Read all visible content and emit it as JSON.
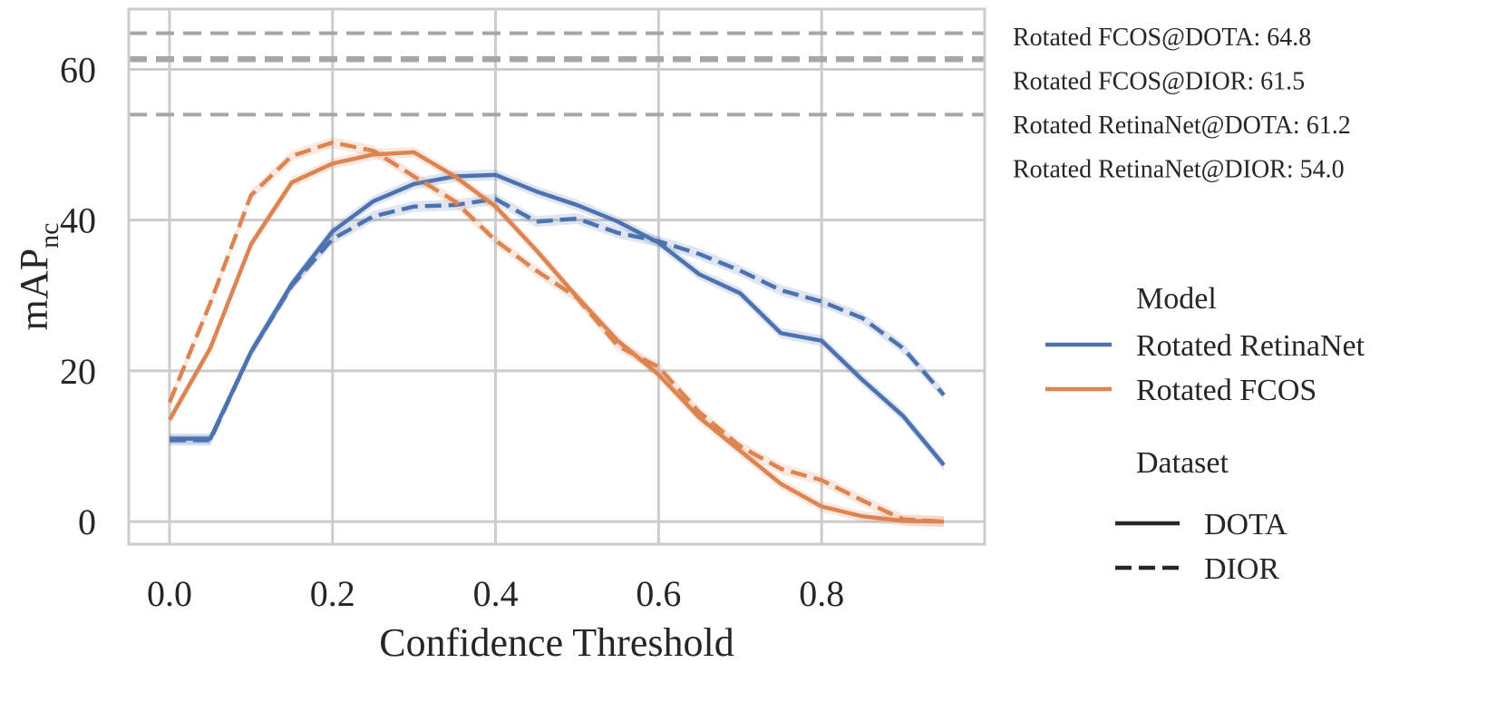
{
  "chart_data": {
    "type": "line",
    "xlabel": "Confidence Threshold",
    "ylabel_main": "mAP",
    "ylabel_sub": "nc",
    "xlim": [
      -0.05,
      1.0
    ],
    "ylim": [
      -3,
      68
    ],
    "xticks": [
      0.0,
      0.2,
      0.4,
      0.6,
      0.8
    ],
    "xtick_labels": [
      "0.0",
      "0.2",
      "0.4",
      "0.6",
      "0.8"
    ],
    "yticks": [
      0,
      20,
      40,
      60
    ],
    "ytick_labels": [
      "0",
      "20",
      "40",
      "60"
    ],
    "grid": true,
    "x": [
      0.0,
      0.05,
      0.1,
      0.15,
      0.2,
      0.25,
      0.3,
      0.35,
      0.4,
      0.45,
      0.5,
      0.55,
      0.6,
      0.65,
      0.7,
      0.75,
      0.8,
      0.85,
      0.9,
      0.95
    ],
    "series": [
      {
        "name": "Rotated RetinaNet · DOTA",
        "model": "Rotated RetinaNet",
        "dataset": "DOTA",
        "color": "#4c72b0",
        "dash": "solid",
        "values": [
          11.0,
          11.0,
          22.5,
          31.5,
          38.5,
          42.5,
          44.8,
          45.8,
          46.0,
          43.8,
          42.0,
          39.8,
          37.0,
          32.8,
          30.3,
          25.0,
          24.0,
          18.8,
          14.0,
          7.5
        ]
      },
      {
        "name": "Rotated RetinaNet · DIOR",
        "model": "Rotated RetinaNet",
        "dataset": "DIOR",
        "color": "#4c72b0",
        "dash": "dashed",
        "values": [
          10.8,
          10.8,
          22.5,
          31.3,
          37.5,
          40.5,
          41.8,
          42.0,
          42.8,
          39.8,
          40.2,
          38.3,
          37.2,
          35.5,
          33.3,
          30.7,
          29.2,
          27.0,
          23.0,
          16.8
        ]
      },
      {
        "name": "Rotated FCOS · DOTA",
        "model": "Rotated FCOS",
        "dataset": "DOTA",
        "color": "#dd8452",
        "dash": "solid",
        "values": [
          13.5,
          23.0,
          36.8,
          45.0,
          47.5,
          48.7,
          49.0,
          45.8,
          41.8,
          36.0,
          29.8,
          24.0,
          19.5,
          13.8,
          9.4,
          5.0,
          2.0,
          0.7,
          0.1,
          0.0
        ]
      },
      {
        "name": "Rotated FCOS · DIOR",
        "model": "Rotated FCOS",
        "dataset": "DIOR",
        "color": "#dd8452",
        "dash": "dashed",
        "values": [
          15.8,
          29.0,
          43.3,
          48.5,
          50.3,
          49.2,
          45.8,
          42.5,
          37.3,
          33.3,
          29.7,
          23.3,
          20.5,
          14.5,
          10.0,
          7.0,
          5.5,
          2.8,
          0.3,
          0.0
        ]
      }
    ],
    "reference_lines": [
      {
        "label": "Rotated FCOS@DOTA: 64.8",
        "value": 64.8
      },
      {
        "label": "Rotated FCOS@DIOR: 61.5",
        "value": 61.5
      },
      {
        "label": "Rotated RetinaNet@DOTA: 61.2",
        "value": 61.2
      },
      {
        "label": "Rotated RetinaNet@DIOR: 54.0",
        "value": 54.0
      }
    ],
    "legend": {
      "placement": "right",
      "model_title": "Model",
      "models": [
        {
          "label": "Rotated RetinaNet",
          "color": "#4c72b0"
        },
        {
          "label": "Rotated FCOS",
          "color": "#dd8452"
        }
      ],
      "dataset_title": "Dataset",
      "datasets": [
        {
          "label": "DOTA",
          "dash": "solid"
        },
        {
          "label": "DIOR",
          "dash": "dashed"
        }
      ]
    }
  }
}
